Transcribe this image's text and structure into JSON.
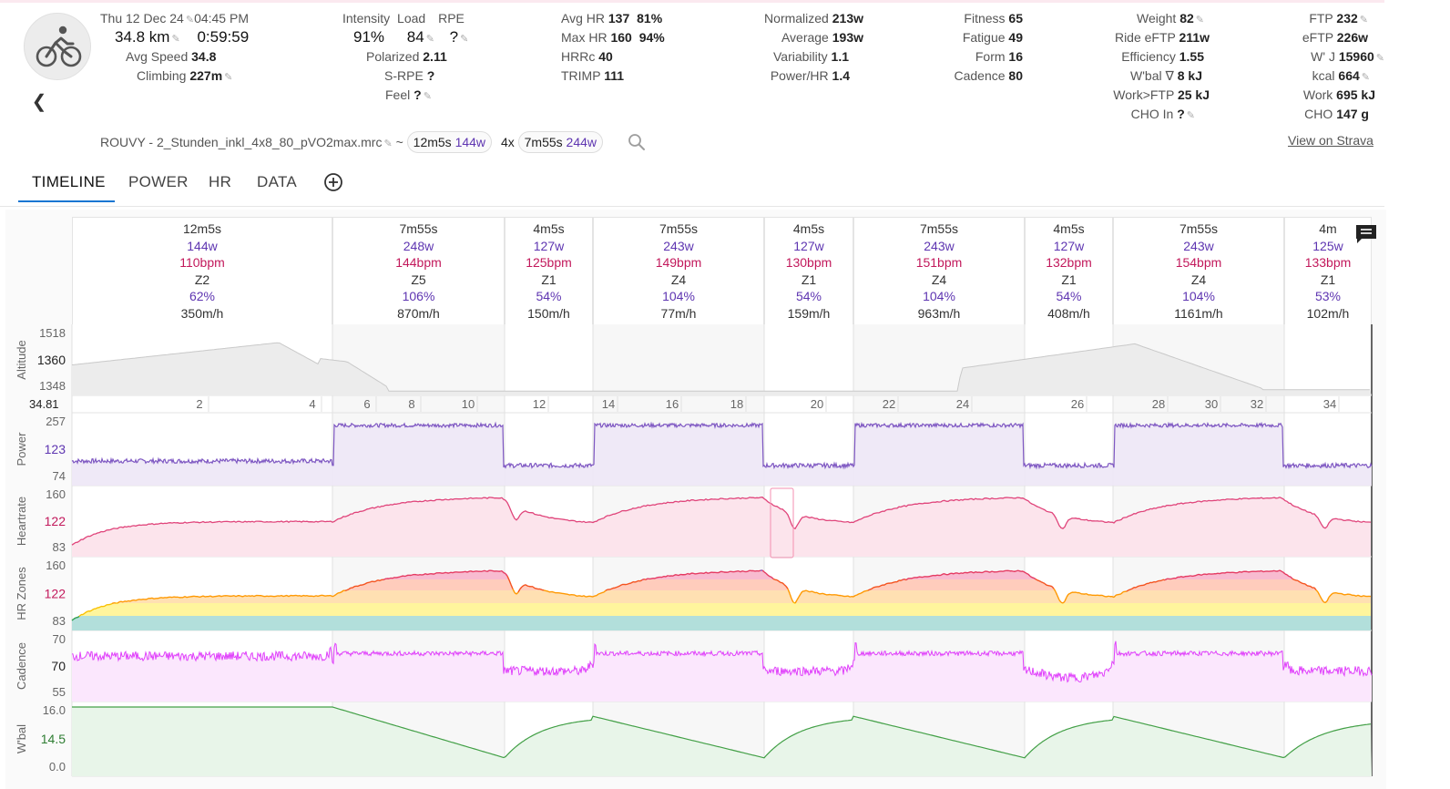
{
  "header": {
    "date": "Thu 12 Dec 24",
    "time": "04:45 PM",
    "distance": "34.8 km",
    "duration": "0:59:59",
    "avg_speed_label": "Avg Speed",
    "avg_speed": "34.8",
    "climbing_label": "Climbing",
    "climbing": "227m"
  },
  "stats_col2": {
    "intensity_label": "Intensity",
    "load_label": "Load",
    "rpe_label": "RPE",
    "intensity": "91%",
    "load": "84",
    "rpe": "?",
    "polarized_label": "Polarized",
    "polarized": "2.11",
    "srpe_label": "S-RPE",
    "srpe": "?",
    "feel_label": "Feel",
    "feel": "?"
  },
  "stats_col3": {
    "avg_hr_label": "Avg HR",
    "avg_hr": "137",
    "avg_hr_pct": "81%",
    "max_hr_label": "Max HR",
    "max_hr": "160",
    "max_hr_pct": "94%",
    "hrrc_label": "HRRc",
    "hrrc": "40",
    "trimp_label": "TRIMP",
    "trimp": "111"
  },
  "stats_col4": {
    "normalized_label": "Normalized",
    "normalized": "213w",
    "average_label": "Average",
    "average": "193w",
    "variability_label": "Variability",
    "variability": "1.1",
    "power_hr_label": "Power/HR",
    "power_hr": "1.4"
  },
  "stats_col5": {
    "fitness_label": "Fitness",
    "fitness": "65",
    "fatigue_label": "Fatigue",
    "fatigue": "49",
    "form_label": "Form",
    "form": "16",
    "cadence_label": "Cadence",
    "cadence": "80"
  },
  "stats_col6": {
    "weight_label": "Weight",
    "weight": "82",
    "ride_eftp_label": "Ride eFTP",
    "ride_eftp": "211w",
    "efficiency_label": "Efficiency",
    "efficiency": "1.55",
    "wbal_label": "W'bal ∇",
    "wbal": "8 kJ",
    "work_ftp_label": "Work>FTP",
    "work_ftp": "25 kJ",
    "cho_in_label": "CHO In",
    "cho_in": "?"
  },
  "stats_col7": {
    "ftp_label": "FTP",
    "ftp": "232",
    "eftp_label": "eFTP",
    "eftp": "226w",
    "wj_label": "W' J",
    "wj": "15960",
    "kcal_label": "kcal",
    "kcal": "664",
    "work_label": "Work",
    "work": "695 kJ",
    "cho_label": "CHO",
    "cho": "147 g"
  },
  "file": {
    "name": "ROUVY - 2_Stunden_inkl_4x8_80_pVO2max.mrc",
    "tilde": "~",
    "pill1_dur": "12m5s",
    "pill1_w": "144w",
    "reps": "4x",
    "pill2_dur": "7m55s",
    "pill2_w": "244w",
    "strava_link": "View on Strava"
  },
  "tabs": [
    "TIMELINE",
    "POWER",
    "HR",
    "DATA"
  ],
  "segments": [
    {
      "dur": "12m5s",
      "w": "144w",
      "hr": "110bpm",
      "z": "Z2",
      "pct": "62%",
      "climb": "350m/h"
    },
    {
      "dur": "7m55s",
      "w": "248w",
      "hr": "144bpm",
      "z": "Z5",
      "pct": "106%",
      "climb": "870m/h"
    },
    {
      "dur": "4m5s",
      "w": "127w",
      "hr": "125bpm",
      "z": "Z1",
      "pct": "54%",
      "climb": "150m/h"
    },
    {
      "dur": "7m55s",
      "w": "243w",
      "hr": "149bpm",
      "z": "Z4",
      "pct": "104%",
      "climb": "77m/h"
    },
    {
      "dur": "4m5s",
      "w": "127w",
      "hr": "130bpm",
      "z": "Z1",
      "pct": "54%",
      "climb": "159m/h"
    },
    {
      "dur": "7m55s",
      "w": "243w",
      "hr": "151bpm",
      "z": "Z4",
      "pct": "104%",
      "climb": "963m/h"
    },
    {
      "dur": "4m5s",
      "w": "127w",
      "hr": "132bpm",
      "z": "Z1",
      "pct": "54%",
      "climb": "408m/h"
    },
    {
      "dur": "7m55s",
      "w": "243w",
      "hr": "154bpm",
      "z": "Z4",
      "pct": "104%",
      "climb": "1161m/h"
    },
    {
      "dur": "4m",
      "w": "125w",
      "hr": "133bpm",
      "z": "Z1",
      "pct": "53%",
      "climb": "102m/h"
    }
  ],
  "panels": {
    "altitude": {
      "label": "Altitude",
      "ticks": [
        "1518",
        "1360",
        "1348"
      ]
    },
    "distance_axis": {
      "start": "34.81",
      "ticks": [
        "2",
        "4",
        "6",
        "8",
        "10",
        "12",
        "14",
        "16",
        "18",
        "20",
        "22",
        "24",
        "26",
        "28",
        "30",
        "32",
        "34"
      ]
    },
    "power": {
      "label": "Power",
      "ticks": [
        "257",
        "123",
        "74"
      ]
    },
    "heartrate": {
      "label": "Heartrate",
      "ticks": [
        "160",
        "122",
        "83"
      ]
    },
    "hrzones": {
      "label": "HR Zones",
      "ticks": [
        "160",
        "122",
        "83"
      ]
    },
    "cadence": {
      "label": "Cadence",
      "ticks": [
        "70",
        "70",
        "55"
      ]
    },
    "wbal": {
      "label": "W'bal",
      "ticks": [
        "16.0",
        "14.5",
        "0.0"
      ]
    }
  },
  "colors": {
    "power": "#7e57c2",
    "heartrate": "#e0457b",
    "cadence": "#e040fb",
    "wbal": "#43a047",
    "active_tab": "#1976d2"
  }
}
